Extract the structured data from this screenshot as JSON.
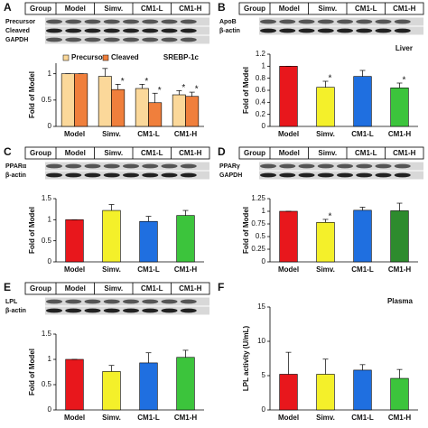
{
  "chart_data": [
    {
      "type": "bar",
      "panel": "A",
      "blot": {
        "header": [
          "Group",
          "Model",
          "Simv.",
          "CM1-L",
          "CM1-H"
        ],
        "rows": [
          "Precursor",
          "Cleaved",
          "GAPDH"
        ]
      },
      "ylabel": "Fold of Model",
      "annotation": "SREBP-1c",
      "categories": [
        "Model",
        "Simv.",
        "CM1-L",
        "CM1-H"
      ],
      "series": [
        {
          "name": "Precursor",
          "color": "#fbd89a",
          "values": [
            1.0,
            0.95,
            0.72,
            0.6
          ],
          "errors": [
            0.0,
            0.15,
            0.08,
            0.08
          ],
          "significance": [
            null,
            null,
            "*",
            "*"
          ]
        },
        {
          "name": "Cleaved",
          "color": "#f07f3c",
          "values": [
            1.0,
            0.7,
            0.45,
            0.57
          ],
          "errors": [
            0.0,
            0.1,
            0.18,
            0.08
          ],
          "significance": [
            null,
            "*",
            "*",
            "*"
          ]
        }
      ],
      "ylim": [
        0,
        1.2
      ],
      "yticks": [
        0,
        0.5,
        1
      ]
    },
    {
      "type": "bar",
      "panel": "B",
      "blot": {
        "header": [
          "Group",
          "Model",
          "Simv.",
          "CM1-L",
          "CM1-H"
        ],
        "rows": [
          "ApoB",
          "β-actin"
        ]
      },
      "ylabel": "Fold of Model",
      "annotation": "Liver",
      "categories": [
        "Model",
        "Simv.",
        "CM1-L",
        "CM1-H"
      ],
      "values": [
        1.0,
        0.65,
        0.83,
        0.64
      ],
      "errors": [
        0.0,
        0.1,
        0.1,
        0.08
      ],
      "significance": [
        null,
        "*",
        null,
        "*"
      ],
      "colors": [
        "#e8171c",
        "#f4f02a",
        "#1f6fe0",
        "#3cc43c"
      ],
      "ylim": [
        0,
        1.2
      ],
      "yticks": [
        0,
        0.2,
        0.4,
        0.6,
        0.8,
        1,
        1.2
      ]
    },
    {
      "type": "bar",
      "panel": "C",
      "blot": {
        "header": [
          "Group",
          "Model",
          "Simv.",
          "CM1-L",
          "CM1-H"
        ],
        "rows": [
          "PPARα",
          "β-actin"
        ]
      },
      "ylabel": "Fold of Model",
      "categories": [
        "Model",
        "Simv.",
        "CM1-L",
        "CM1-H"
      ],
      "values": [
        1.0,
        1.22,
        0.96,
        1.1
      ],
      "errors": [
        0.0,
        0.14,
        0.12,
        0.12
      ],
      "colors": [
        "#e8171c",
        "#f4f02a",
        "#1f6fe0",
        "#3cc43c"
      ],
      "ylim": [
        0,
        1.5
      ],
      "yticks": [
        0,
        0.5,
        1,
        1.5
      ]
    },
    {
      "type": "bar",
      "panel": "D",
      "blot": {
        "header": [
          "Group",
          "Model",
          "Simv.",
          "CM1-L",
          "CM1-H"
        ],
        "rows": [
          "PPARγ",
          "GAPDH"
        ]
      },
      "ylabel": "Fold of Model",
      "categories": [
        "Model",
        "Simv.",
        "CM1-L",
        "CM1-H"
      ],
      "values": [
        1.0,
        0.78,
        1.02,
        1.01
      ],
      "errors": [
        0.0,
        0.06,
        0.06,
        0.15
      ],
      "significance": [
        null,
        "*",
        null,
        null
      ],
      "colors": [
        "#e8171c",
        "#f4f02a",
        "#1f6fe0",
        "#2e8b2e"
      ],
      "ylim": [
        0,
        1.25
      ],
      "yticks": [
        0,
        0.25,
        0.5,
        0.75,
        1,
        1.25
      ]
    },
    {
      "type": "bar",
      "panel": "E",
      "blot": {
        "header": [
          "Group",
          "Model",
          "Simv.",
          "CM1-L",
          "CM1-H"
        ],
        "rows": [
          "LPL",
          "β-actin"
        ]
      },
      "ylabel": "Fold of Model",
      "categories": [
        "Model",
        "Simv.",
        "CM1-L",
        "CM1-H"
      ],
      "values": [
        1.0,
        0.76,
        0.93,
        1.04
      ],
      "errors": [
        0.0,
        0.12,
        0.2,
        0.14
      ],
      "colors": [
        "#e8171c",
        "#f4f02a",
        "#1f6fe0",
        "#3cc43c"
      ],
      "ylim": [
        0,
        1.5
      ],
      "yticks": [
        0,
        0.5,
        1,
        1.5
      ]
    },
    {
      "type": "bar",
      "panel": "F",
      "ylabel": "LPL activity (U/mL)",
      "annotation": "Plasma",
      "categories": [
        "Model",
        "Simv.",
        "CM1-L",
        "CM1-H"
      ],
      "values": [
        5.2,
        5.2,
        5.8,
        4.6
      ],
      "errors": [
        3.2,
        2.2,
        0.8,
        1.3
      ],
      "colors": [
        "#e8171c",
        "#f4f02a",
        "#1f6fe0",
        "#3cc43c"
      ],
      "ylim": [
        0,
        15
      ],
      "yticks": [
        0,
        5,
        10,
        15
      ]
    }
  ]
}
